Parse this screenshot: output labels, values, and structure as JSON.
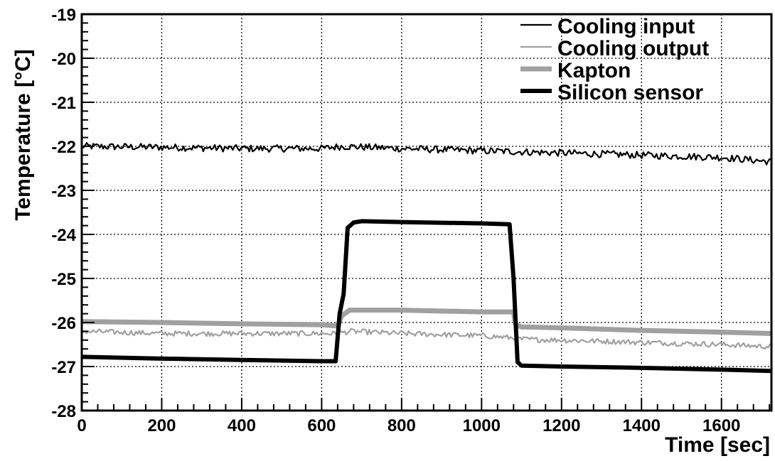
{
  "chart_data": {
    "type": "line",
    "title": "",
    "xlabel": "Time [sec]",
    "ylabel": "Temperature [°C]",
    "xlim": [
      0,
      1725
    ],
    "ylim": [
      -28,
      -19
    ],
    "x_ticks": [
      0,
      200,
      400,
      600,
      800,
      1000,
      1200,
      1400,
      1600
    ],
    "y_ticks": [
      -28,
      -27,
      -26,
      -25,
      -24,
      -23,
      -22,
      -21,
      -20,
      -19
    ],
    "x_tick_labels": [
      "0",
      "200",
      "400",
      "600",
      "800",
      "1000",
      "1200",
      "1400",
      "1600"
    ],
    "y_tick_labels": [
      "-28",
      "-27",
      "-26",
      "-25",
      "-24",
      "-23",
      "-22",
      "-21",
      "-20",
      "-19"
    ],
    "grid": true,
    "legend_position": "top-right",
    "series": [
      {
        "name": "Cooling input",
        "color": "#000000",
        "style": "thin",
        "noise": 0.08,
        "x": [
          0,
          200,
          400,
          600,
          650,
          800,
          1000,
          1200,
          1400,
          1600,
          1725
        ],
        "y": [
          -22.0,
          -22.02,
          -22.05,
          -22.05,
          -22.0,
          -22.05,
          -22.1,
          -22.15,
          -22.2,
          -22.25,
          -22.35
        ]
      },
      {
        "name": "Cooling output",
        "color": "#a0a0a0",
        "style": "thin",
        "noise": 0.06,
        "x": [
          0,
          200,
          400,
          600,
          640,
          670,
          800,
          1000,
          1080,
          1100,
          1200,
          1400,
          1600,
          1725
        ],
        "y": [
          -26.2,
          -26.25,
          -26.25,
          -26.25,
          -26.25,
          -26.2,
          -26.25,
          -26.3,
          -26.35,
          -26.38,
          -26.4,
          -26.45,
          -26.5,
          -26.55
        ]
      },
      {
        "name": "Kapton",
        "color": "#a0a0a0",
        "style": "thick",
        "noise": 0.0,
        "x": [
          0,
          200,
          400,
          600,
          640,
          650,
          670,
          800,
          1000,
          1080,
          1085,
          1100,
          1200,
          1400,
          1600,
          1725
        ],
        "y": [
          -25.98,
          -26.0,
          -26.03,
          -26.05,
          -26.08,
          -25.85,
          -25.72,
          -25.72,
          -25.76,
          -25.76,
          -26.05,
          -26.1,
          -26.12,
          -26.18,
          -26.22,
          -26.25
        ]
      },
      {
        "name": "Silicon sensor",
        "color": "#000000",
        "style": "thicker",
        "noise": 0.0,
        "x": [
          0,
          200,
          400,
          600,
          635,
          645,
          655,
          665,
          680,
          700,
          800,
          1000,
          1070,
          1080,
          1090,
          1100,
          1200,
          1400,
          1600,
          1725
        ],
        "y": [
          -26.78,
          -26.82,
          -26.85,
          -26.88,
          -26.88,
          -25.8,
          -25.35,
          -23.85,
          -23.73,
          -23.7,
          -23.72,
          -23.75,
          -23.77,
          -25.0,
          -26.9,
          -26.98,
          -27.0,
          -27.03,
          -27.07,
          -27.1
        ]
      }
    ]
  }
}
